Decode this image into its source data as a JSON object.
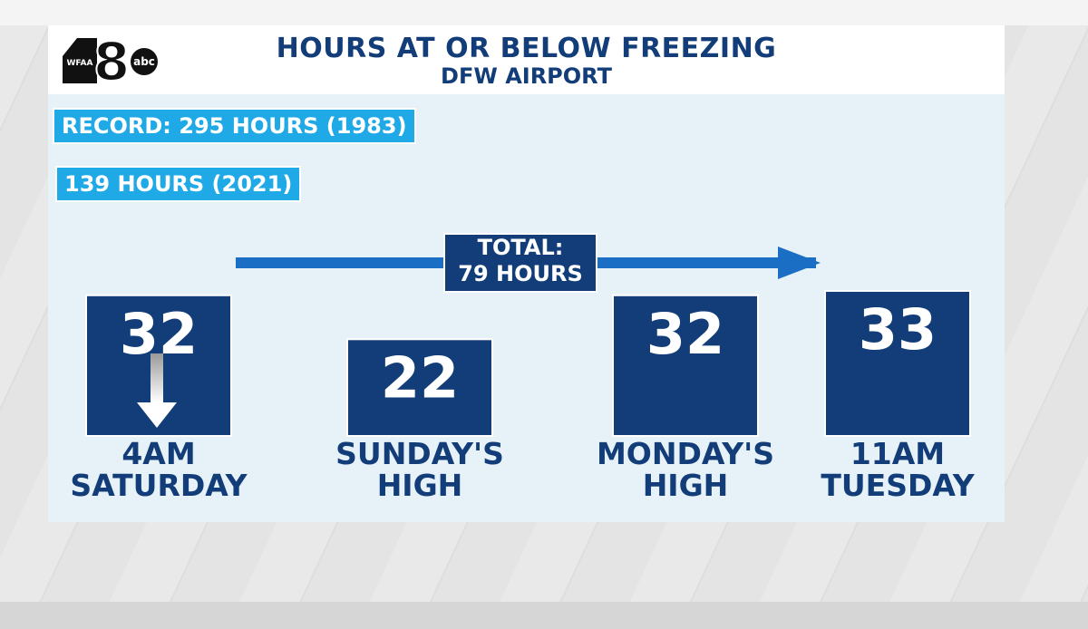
{
  "header": {
    "title": "HOURS AT OR BELOW FREEZING",
    "subtitle": "DFW AIRPORT",
    "logo": {
      "station": "WFAA",
      "channel": "8",
      "network": "abc"
    }
  },
  "tags": {
    "record": "RECORD: 295 HOURS (1983)",
    "year_2021": "139 HOURS (2021)"
  },
  "total": {
    "line1": "TOTAL:",
    "line2": "79 HOURS"
  },
  "colors": {
    "bar": "#123d78",
    "accent": "#1fa9e6",
    "arrow": "#1a6fc4",
    "panel": "#e6f1f8"
  },
  "chart_data": {
    "type": "bar",
    "categories": [
      [
        "4AM",
        "SATURDAY"
      ],
      [
        "SUNDAY'S",
        "HIGH"
      ],
      [
        "MONDAY'S",
        "HIGH"
      ],
      [
        "11AM",
        "TUESDAY"
      ]
    ],
    "values": [
      32,
      22,
      32,
      33
    ],
    "annotations": [
      "down-arrow-icon under 4AM Saturday value",
      "arrow spanning bars labeled TOTAL: 79 HOURS"
    ]
  }
}
